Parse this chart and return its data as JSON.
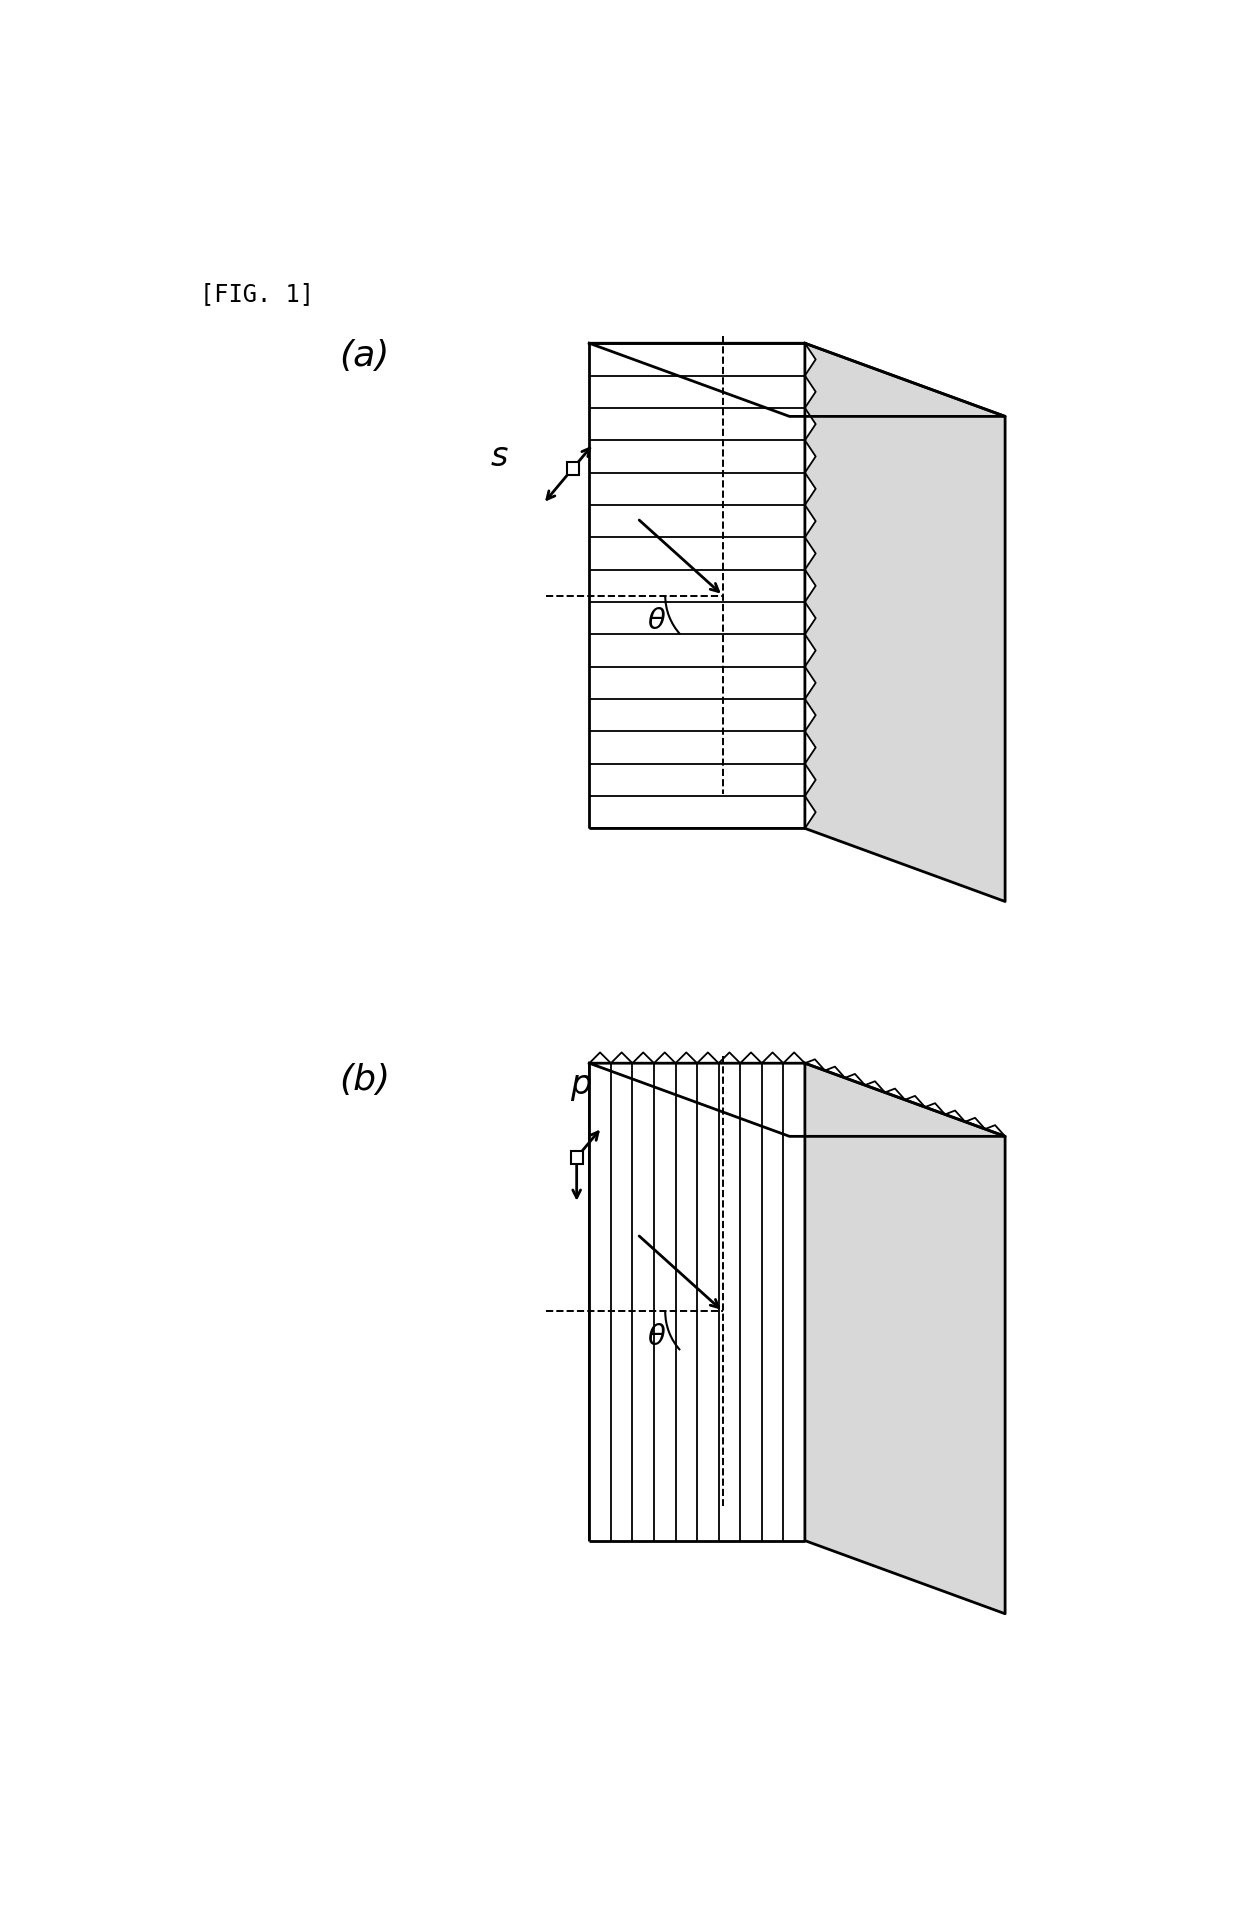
{
  "fig_label": "[FIG. 1]",
  "label_a": "(a)",
  "label_b": "(b)",
  "label_s": "s",
  "label_p": "p",
  "theta_label": "θ",
  "bg_color": "#ffffff",
  "line_color": "#000000",
  "fig_width": 12.4,
  "fig_height": 19.3,
  "lw_thick": 2.0,
  "lw_thin": 1.3,
  "lw_dash": 1.4
}
